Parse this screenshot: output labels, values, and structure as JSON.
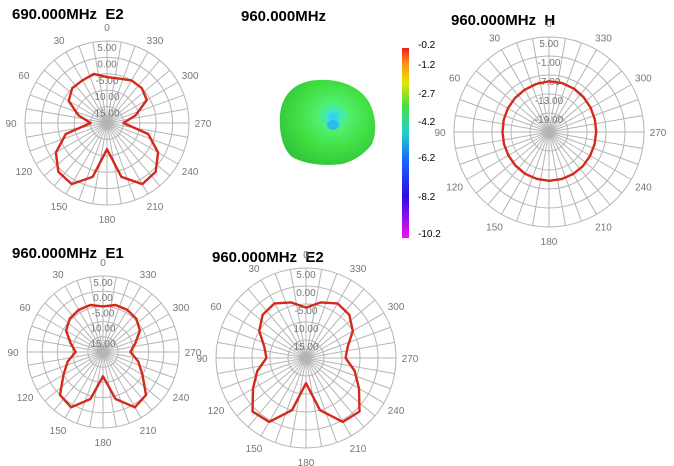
{
  "colors": {
    "pattern": "#d42a1c",
    "grid": "#b5b5b5",
    "label": "#777777"
  },
  "chart_data": [
    {
      "type": "polar",
      "title": "690.000MHz  E2",
      "angle_labels": [
        "0",
        "30",
        "60",
        "90",
        "120",
        "150",
        "180",
        "210",
        "240",
        "270",
        "300",
        "330"
      ],
      "radial_labels": [
        "5.00",
        "0.00",
        "-5.00",
        "10.00",
        "15.00"
      ],
      "series": [
        {
          "angles": [
            0,
            15,
            30,
            45,
            60,
            75,
            90,
            105,
            120,
            135,
            150,
            165,
            180,
            195,
            210,
            225,
            240,
            255,
            270,
            285,
            300,
            315,
            330,
            345
          ],
          "values": [
            -6,
            -4.5,
            -5,
            -5,
            -6.5,
            -11,
            -15,
            -7,
            -2,
            1,
            1.5,
            -3,
            -12,
            -3,
            1.5,
            1,
            -2,
            -7,
            -15,
            -11,
            -6,
            -5,
            -5,
            -6
          ]
        }
      ]
    },
    {
      "type": "heatmap",
      "title": "960.000MHz",
      "colorbar": {
        "ticks": [
          "-0.2",
          "-1.2",
          "-2.7",
          "-4.2",
          "-6.2",
          "-8.2",
          "-10.2"
        ]
      }
    },
    {
      "type": "polar",
      "title": "960.000MHz  H",
      "angle_labels": [
        "0",
        "30",
        "60",
        "90",
        "120",
        "150",
        "180",
        "210",
        "240",
        "270",
        "300",
        "330"
      ],
      "radial_labels": [
        "5.00",
        "-1.00",
        "-7.00",
        "-13.00",
        "-19.00"
      ],
      "series": [
        {
          "angles": [
            0,
            15,
            30,
            45,
            60,
            75,
            90,
            105,
            120,
            135,
            150,
            165,
            180,
            195,
            210,
            225,
            240,
            255,
            270,
            285,
            300,
            315,
            330,
            345
          ],
          "values": [
            -9,
            -9.3,
            -9.6,
            -9.8,
            -10,
            -10.2,
            -10.3,
            -10.3,
            -10.2,
            -10,
            -9.8,
            -9.7,
            -9.6,
            -9.6,
            -9.7,
            -9.8,
            -10,
            -10.1,
            -10.1,
            -10,
            -9.8,
            -9.5,
            -9.2,
            -9
          ]
        }
      ]
    },
    {
      "type": "polar",
      "title": "960.000MHz  E1",
      "angle_labels": [
        "0",
        "30",
        "60",
        "90",
        "120",
        "150",
        "180",
        "210",
        "240",
        "270",
        "300",
        "330"
      ],
      "radial_labels": [
        "5.00",
        "0.00",
        "-5.00",
        "10.00",
        "15.00"
      ],
      "series": [
        {
          "angles": [
            0,
            15,
            30,
            45,
            60,
            75,
            90,
            105,
            120,
            135,
            150,
            165,
            180,
            195,
            210,
            225,
            240,
            255,
            270,
            285,
            300,
            315,
            330,
            345
          ],
          "values": [
            -5,
            -4,
            -4,
            -4.5,
            -6,
            -9,
            -11,
            -8,
            -5,
            0,
            1,
            -4,
            -12,
            -4,
            1,
            0,
            -5,
            -8,
            -11,
            -9,
            -6,
            -4.5,
            -4,
            -4
          ]
        }
      ]
    },
    {
      "type": "polar",
      "title": "960.000MHz  E2",
      "angle_labels": [
        "0",
        "30",
        "60",
        "90",
        "120",
        "150",
        "180",
        "210",
        "240",
        "270",
        "300",
        "330"
      ],
      "radial_labels": [
        "5.00",
        "0.00",
        "-5.00",
        "10.00",
        "15.00"
      ],
      "series": [
        {
          "angles": [
            0,
            15,
            30,
            45,
            60,
            75,
            90,
            105,
            120,
            135,
            150,
            165,
            180,
            195,
            210,
            225,
            240,
            255,
            270,
            285,
            300,
            315,
            330,
            345
          ],
          "values": [
            -6,
            -4,
            -2.5,
            -3,
            -5,
            -8,
            -9,
            -6,
            -3,
            1,
            0.5,
            -5,
            -13,
            -5,
            0.5,
            1,
            -3,
            -6,
            -9,
            -8,
            -5,
            -3,
            -2.5,
            -4
          ]
        }
      ]
    }
  ]
}
